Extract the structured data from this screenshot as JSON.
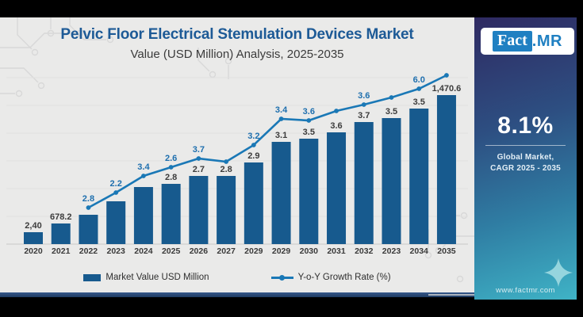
{
  "header": {
    "title": "Pelvic Floor Electrical Stemulation Devices Market",
    "subtitle": "Value (USD Million) Analysis, 2025-2035"
  },
  "chart_data": {
    "type": "bar+line combo",
    "title": "Pelvic Floor Electrical Stemulation Devices Market",
    "subtitle": "Value (USD Million) Analysis, 2025-2035",
    "categories": [
      "2020",
      "2021",
      "2022",
      "2023",
      "2024",
      "2025",
      "2026",
      "2027",
      "2029",
      "2029",
      "2030",
      "2031",
      "2032",
      "2023",
      "2034",
      "2035"
    ],
    "bar_series": {
      "name": "Market Value USD Million",
      "data_labels": [
        "2,40",
        "678.2",
        "",
        "",
        "",
        "2.8",
        "2.7",
        "2.8",
        "2.9",
        "3.1",
        "3.5",
        "3.6",
        "3.7",
        "3.5",
        "3.5",
        "1,470.6"
      ],
      "relative_heights": [
        15,
        26,
        37,
        54,
        72,
        76,
        86,
        86,
        103,
        129,
        133,
        141,
        154,
        159,
        171,
        188
      ]
    },
    "line_series": {
      "name": "Y-o-Y Growth Rate (%)",
      "data_labels": [
        "",
        "",
        "2.8",
        "2.2",
        "3.4",
        "2.6",
        "3.7",
        "",
        "3.2",
        "3.4",
        "3.6",
        "",
        "3.6",
        "",
        "6.0",
        ""
      ],
      "relative_heights": [
        null,
        null,
        46,
        65,
        86,
        97,
        108,
        104,
        125,
        158,
        156,
        168,
        176,
        185,
        196,
        213
      ]
    },
    "axes": {
      "x_label": "",
      "y_label": "",
      "y_axis_shown": false,
      "gridlines": "faint horizontal",
      "note": "no numeric y-axis; heights are relative plot units estimated from pixels"
    },
    "legend_position": "bottom"
  },
  "legend": {
    "items": [
      {
        "label": "Market Value USD Million",
        "marker": "bar-swatch"
      },
      {
        "label": "Y-o-Y Growth Rate (%)",
        "marker": "line-dot"
      }
    ]
  },
  "panel": {
    "logo": {
      "fact": "Fact",
      "mr": ".MR"
    },
    "cagr": "8.1%",
    "caption_line1": "Global Market,",
    "caption_line2": "CAGR 2025 - 2035",
    "website": "www.factmr.com",
    "sparkle_icon": "four-point-star"
  },
  "colors": {
    "bar": "#175a8e",
    "line": "#1a78b6",
    "line_label": "#1e6fae",
    "title": "#1d5a96",
    "panel_top": "#2f2a62",
    "panel_bottom": "#3fb3c6",
    "logo_blue": "#2080c2",
    "background": "#eaeae9"
  }
}
